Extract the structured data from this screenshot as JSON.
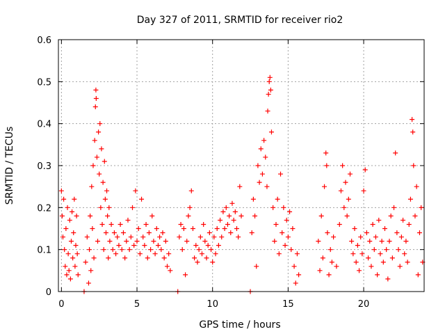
{
  "chart_data": {
    "type": "scatter",
    "title": "Day 327 of 2011, SRMTID for receiver rio2",
    "xlabel": "GPS time / hours",
    "ylabel": "SRMTID / TECUs",
    "xlim": [
      -0.2,
      24
    ],
    "ylim": [
      0,
      0.6
    ],
    "xticks": [
      0,
      5,
      10,
      15,
      20
    ],
    "xtick_labels": [
      "0",
      "5",
      "10",
      "15",
      "20"
    ],
    "yticks": [
      0,
      0.1,
      0.2,
      0.3,
      0.4,
      0.5,
      0.6
    ],
    "ytick_labels": [
      "0",
      "0.1",
      "0.2",
      "0.3",
      "0.4",
      "0.5",
      "0.6"
    ],
    "grid": true,
    "marker": "plus",
    "series": [
      {
        "name": "SRMTID rio2",
        "color": "#ff0000",
        "points": [
          [
            0.0,
            0.24
          ],
          [
            0.05,
            0.18
          ],
          [
            0.1,
            0.13
          ],
          [
            0.15,
            0.22
          ],
          [
            0.2,
            0.1
          ],
          [
            0.25,
            0.06
          ],
          [
            0.3,
            0.15
          ],
          [
            0.35,
            0.04
          ],
          [
            0.4,
            0.2
          ],
          [
            0.45,
            0.09
          ],
          [
            0.5,
            0.05
          ],
          [
            0.55,
            0.17
          ],
          [
            0.6,
            0.03
          ],
          [
            0.65,
            0.12
          ],
          [
            0.7,
            0.19
          ],
          [
            0.75,
            0.08
          ],
          [
            0.8,
            0.14
          ],
          [
            0.85,
            0.22
          ],
          [
            0.9,
            0.06
          ],
          [
            0.95,
            0.11
          ],
          [
            1.0,
            0.18
          ],
          [
            1.05,
            0.09
          ],
          [
            1.1,
            0.04
          ],
          [
            1.5,
            0.0
          ],
          [
            1.6,
            0.07
          ],
          [
            1.7,
            0.13
          ],
          [
            1.8,
            0.02
          ],
          [
            1.85,
            0.1
          ],
          [
            1.9,
            0.18
          ],
          [
            1.95,
            0.05
          ],
          [
            2.0,
            0.25
          ],
          [
            2.05,
            0.15
          ],
          [
            2.1,
            0.3
          ],
          [
            2.15,
            0.08
          ],
          [
            2.2,
            0.36
          ],
          [
            2.25,
            0.44
          ],
          [
            2.28,
            0.48
          ],
          [
            2.3,
            0.46
          ],
          [
            2.35,
            0.32
          ],
          [
            2.4,
            0.12
          ],
          [
            2.45,
            0.38
          ],
          [
            2.5,
            0.28
          ],
          [
            2.55,
            0.4
          ],
          [
            2.6,
            0.2
          ],
          [
            2.65,
            0.34
          ],
          [
            2.7,
            0.16
          ],
          [
            2.75,
            0.26
          ],
          [
            2.8,
            0.1
          ],
          [
            2.85,
            0.31
          ],
          [
            2.9,
            0.22
          ],
          [
            2.95,
            0.14
          ],
          [
            3.0,
            0.24
          ],
          [
            3.05,
            0.18
          ],
          [
            3.1,
            0.08
          ],
          [
            3.15,
            0.2
          ],
          [
            3.2,
            0.12
          ],
          [
            3.3,
            0.16
          ],
          [
            3.4,
            0.1
          ],
          [
            3.5,
            0.14
          ],
          [
            3.6,
            0.09
          ],
          [
            3.7,
            0.13
          ],
          [
            3.8,
            0.11
          ],
          [
            3.9,
            0.16
          ],
          [
            4.0,
            0.1
          ],
          [
            4.1,
            0.14
          ],
          [
            4.2,
            0.08
          ],
          [
            4.3,
            0.12
          ],
          [
            4.4,
            0.17
          ],
          [
            4.5,
            0.1
          ],
          [
            4.6,
            0.13
          ],
          [
            4.7,
            0.2
          ],
          [
            4.8,
            0.11
          ],
          [
            4.9,
            0.24
          ],
          [
            5.0,
            0.12
          ],
          [
            5.1,
            0.15
          ],
          [
            5.2,
            0.09
          ],
          [
            5.3,
            0.22
          ],
          [
            5.4,
            0.13
          ],
          [
            5.5,
            0.11
          ],
          [
            5.6,
            0.16
          ],
          [
            5.7,
            0.08
          ],
          [
            5.8,
            0.14
          ],
          [
            5.9,
            0.1
          ],
          [
            6.0,
            0.18
          ],
          [
            6.1,
            0.12
          ],
          [
            6.2,
            0.09
          ],
          [
            6.3,
            0.15
          ],
          [
            6.4,
            0.11
          ],
          [
            6.5,
            0.13
          ],
          [
            6.6,
            0.1
          ],
          [
            6.7,
            0.14
          ],
          [
            6.8,
            0.08
          ],
          [
            6.9,
            0.12
          ],
          [
            7.0,
            0.06
          ],
          [
            7.1,
            0.09
          ],
          [
            7.2,
            0.05
          ],
          [
            7.7,
            0.0
          ],
          [
            7.8,
            0.13
          ],
          [
            7.9,
            0.16
          ],
          [
            8.0,
            0.1
          ],
          [
            8.1,
            0.15
          ],
          [
            8.2,
            0.04
          ],
          [
            8.3,
            0.12
          ],
          [
            8.4,
            0.18
          ],
          [
            8.5,
            0.2
          ],
          [
            8.6,
            0.24
          ],
          [
            8.7,
            0.15
          ],
          [
            8.8,
            0.08
          ],
          [
            8.9,
            0.11
          ],
          [
            9.0,
            0.07
          ],
          [
            9.1,
            0.1
          ],
          [
            9.2,
            0.13
          ],
          [
            9.3,
            0.09
          ],
          [
            9.4,
            0.16
          ],
          [
            9.5,
            0.12
          ],
          [
            9.6,
            0.08
          ],
          [
            9.7,
            0.11
          ],
          [
            9.8,
            0.14
          ],
          [
            9.9,
            0.1
          ],
          [
            10.0,
            0.07
          ],
          [
            10.1,
            0.13
          ],
          [
            10.2,
            0.09
          ],
          [
            10.3,
            0.15
          ],
          [
            10.4,
            0.11
          ],
          [
            10.5,
            0.17
          ],
          [
            10.6,
            0.13
          ],
          [
            10.7,
            0.19
          ],
          [
            10.8,
            0.15
          ],
          [
            10.9,
            0.2
          ],
          [
            11.0,
            0.16
          ],
          [
            11.1,
            0.18
          ],
          [
            11.2,
            0.14
          ],
          [
            11.3,
            0.21
          ],
          [
            11.4,
            0.17
          ],
          [
            11.5,
            0.19
          ],
          [
            11.6,
            0.15
          ],
          [
            11.7,
            0.13
          ],
          [
            11.8,
            0.25
          ],
          [
            11.9,
            0.18
          ],
          [
            12.5,
            0.0
          ],
          [
            12.6,
            0.14
          ],
          [
            12.7,
            0.22
          ],
          [
            12.8,
            0.18
          ],
          [
            12.9,
            0.06
          ],
          [
            13.0,
            0.3
          ],
          [
            13.1,
            0.26
          ],
          [
            13.2,
            0.34
          ],
          [
            13.3,
            0.28
          ],
          [
            13.4,
            0.36
          ],
          [
            13.5,
            0.32
          ],
          [
            13.6,
            0.25
          ],
          [
            13.65,
            0.43
          ],
          [
            13.7,
            0.47
          ],
          [
            13.75,
            0.5
          ],
          [
            13.8,
            0.51
          ],
          [
            13.85,
            0.48
          ],
          [
            13.9,
            0.38
          ],
          [
            14.0,
            0.2
          ],
          [
            14.1,
            0.12
          ],
          [
            14.2,
            0.16
          ],
          [
            14.3,
            0.22
          ],
          [
            14.4,
            0.09
          ],
          [
            14.5,
            0.28
          ],
          [
            14.6,
            0.14
          ],
          [
            14.7,
            0.2
          ],
          [
            14.8,
            0.11
          ],
          [
            14.9,
            0.17
          ],
          [
            15.0,
            0.13
          ],
          [
            15.1,
            0.19
          ],
          [
            15.2,
            0.1
          ],
          [
            15.3,
            0.15
          ],
          [
            15.4,
            0.06
          ],
          [
            15.5,
            0.02
          ],
          [
            15.6,
            0.09
          ],
          [
            15.7,
            0.04
          ],
          [
            17.0,
            0.12
          ],
          [
            17.1,
            0.05
          ],
          [
            17.2,
            0.18
          ],
          [
            17.3,
            0.08
          ],
          [
            17.4,
            0.25
          ],
          [
            17.5,
            0.33
          ],
          [
            17.55,
            0.3
          ],
          [
            17.6,
            0.14
          ],
          [
            17.7,
            0.04
          ],
          [
            17.8,
            0.1
          ],
          [
            17.9,
            0.07
          ],
          [
            18.0,
            0.13
          ],
          [
            18.2,
            0.06
          ],
          [
            18.4,
            0.16
          ],
          [
            18.5,
            0.24
          ],
          [
            18.6,
            0.3
          ],
          [
            18.7,
            0.2
          ],
          [
            18.8,
            0.26
          ],
          [
            18.9,
            0.18
          ],
          [
            19.0,
            0.22
          ],
          [
            19.1,
            0.28
          ],
          [
            19.2,
            0.12
          ],
          [
            19.3,
            0.09
          ],
          [
            19.4,
            0.15
          ],
          [
            19.5,
            0.07
          ],
          [
            19.6,
            0.11
          ],
          [
            19.7,
            0.05
          ],
          [
            19.8,
            0.13
          ],
          [
            19.9,
            0.09
          ],
          [
            20.0,
            0.24
          ],
          [
            20.1,
            0.29
          ],
          [
            20.2,
            0.14
          ],
          [
            20.3,
            0.08
          ],
          [
            20.4,
            0.12
          ],
          [
            20.5,
            0.06
          ],
          [
            20.6,
            0.16
          ],
          [
            20.7,
            0.1
          ],
          [
            20.8,
            0.13
          ],
          [
            20.9,
            0.04
          ],
          [
            21.0,
            0.17
          ],
          [
            21.1,
            0.09
          ],
          [
            21.2,
            0.12
          ],
          [
            21.3,
            0.07
          ],
          [
            21.4,
            0.15
          ],
          [
            21.5,
            0.1
          ],
          [
            21.6,
            0.03
          ],
          [
            21.7,
            0.12
          ],
          [
            21.8,
            0.18
          ],
          [
            21.9,
            0.08
          ],
          [
            22.0,
            0.2
          ],
          [
            22.1,
            0.33
          ],
          [
            22.2,
            0.14
          ],
          [
            22.3,
            0.1
          ],
          [
            22.4,
            0.06
          ],
          [
            22.5,
            0.13
          ],
          [
            22.6,
            0.17
          ],
          [
            22.7,
            0.09
          ],
          [
            22.8,
            0.12
          ],
          [
            22.9,
            0.07
          ],
          [
            23.0,
            0.16
          ],
          [
            23.1,
            0.22
          ],
          [
            23.2,
            0.41
          ],
          [
            23.25,
            0.38
          ],
          [
            23.3,
            0.3
          ],
          [
            23.4,
            0.18
          ],
          [
            23.5,
            0.25
          ],
          [
            23.6,
            0.04
          ],
          [
            23.7,
            0.14
          ],
          [
            23.8,
            0.2
          ],
          [
            23.9,
            0.07
          ]
        ]
      }
    ]
  }
}
